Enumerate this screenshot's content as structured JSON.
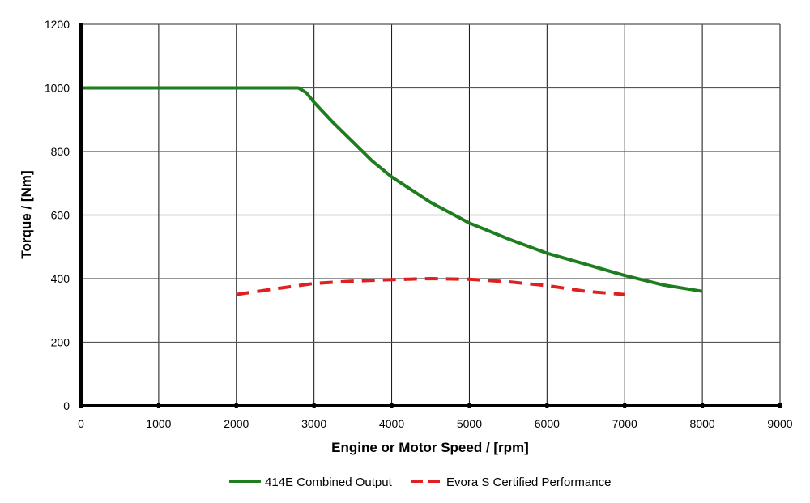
{
  "chart_data": {
    "type": "line",
    "title": "",
    "xlabel": "Engine or Motor Speed / [rpm]",
    "ylabel": "Torque / [Nm]",
    "xlim": [
      0,
      9000
    ],
    "ylim": [
      0,
      1200
    ],
    "xticks": [
      0,
      1000,
      2000,
      3000,
      4000,
      5000,
      6000,
      7000,
      8000,
      9000
    ],
    "yticks": [
      0,
      200,
      400,
      600,
      800,
      1000,
      1200
    ],
    "grid": true,
    "legend_position": "bottom",
    "series": [
      {
        "name": "414E Combined Output",
        "color": "#1e7d1e",
        "style": "solid",
        "x": [
          0,
          1000,
          2000,
          2700,
          2800,
          2900,
          3000,
          3250,
          3500,
          3750,
          4000,
          4500,
          5000,
          5500,
          6000,
          6500,
          7000,
          7500,
          8000
        ],
        "y": [
          1000,
          1000,
          1000,
          1000,
          1000,
          985,
          955,
          890,
          830,
          770,
          720,
          640,
          575,
          525,
          480,
          445,
          410,
          380,
          360
        ]
      },
      {
        "name": "Evora S Certified Performance",
        "color": "#e02020",
        "style": "dashed",
        "x": [
          2000,
          2500,
          3000,
          3500,
          4000,
          4500,
          5000,
          5500,
          6000,
          6500,
          7000
        ],
        "y": [
          350,
          368,
          385,
          392,
          397,
          400,
          398,
          390,
          378,
          360,
          350
        ]
      }
    ]
  }
}
